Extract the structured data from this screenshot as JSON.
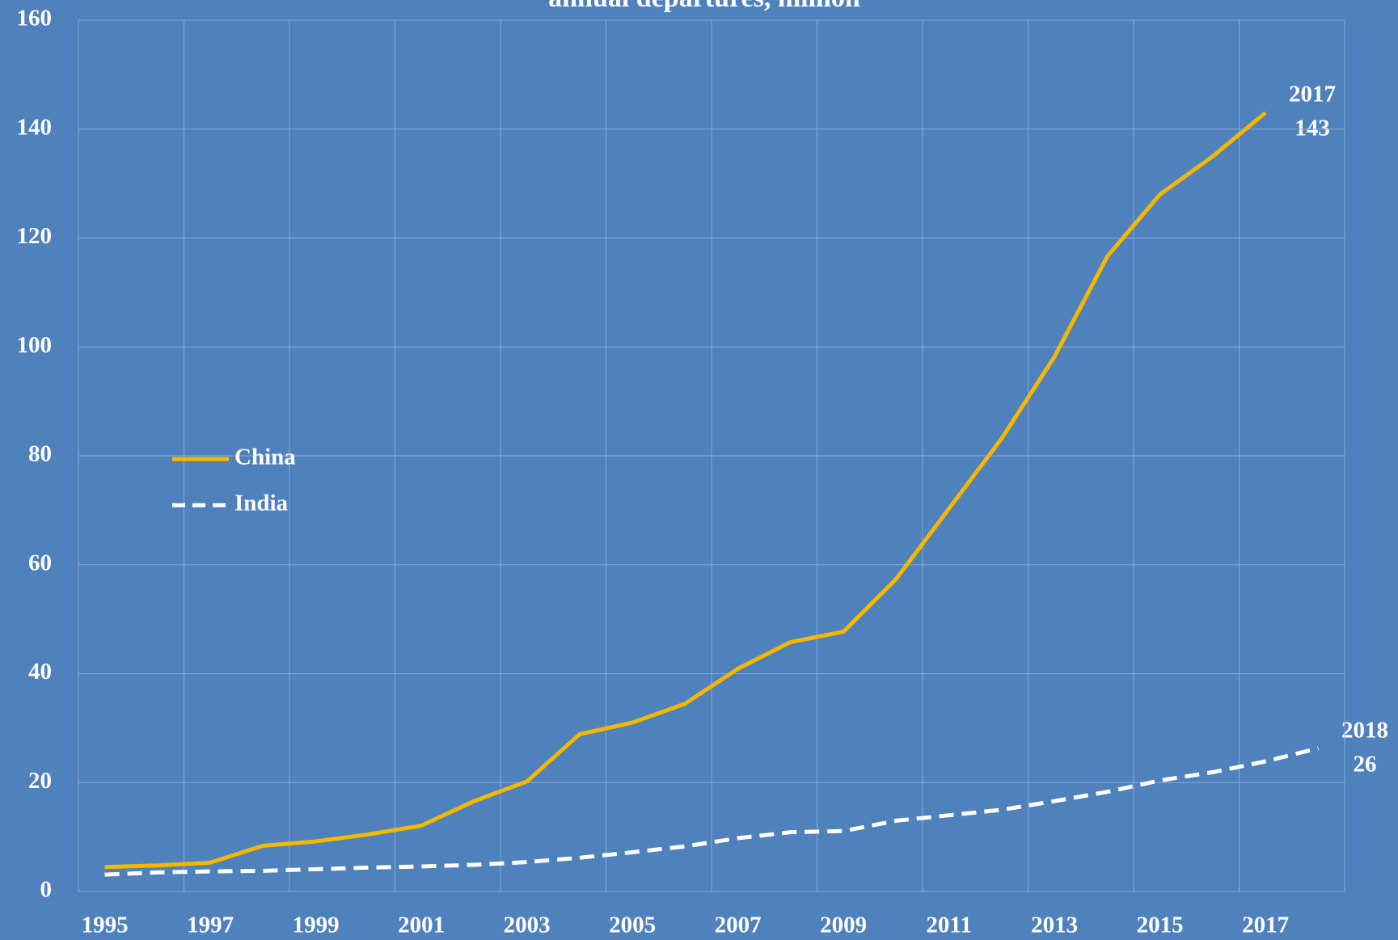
{
  "chart_data": {
    "type": "line",
    "title": "annual departures, million",
    "categories": [
      "1995",
      null,
      "1997",
      null,
      "1999",
      null,
      "2001",
      null,
      "2003",
      null,
      "2005",
      null,
      "2007",
      null,
      "2009",
      null,
      "2011",
      null,
      "2013",
      null,
      "2015",
      null,
      "2017",
      null
    ],
    "series": [
      {
        "name": "China",
        "color": "#f5b800",
        "dash": false,
        "values": [
          4.5,
          4.8,
          5.3,
          8.4,
          9.2,
          10.5,
          12.1,
          16.6,
          20.2,
          28.9,
          31.0,
          34.5,
          40.9,
          45.8,
          47.7,
          57.4,
          70.3,
          83.2,
          98.2,
          116.6,
          128,
          135,
          143,
          null
        ]
      },
      {
        "name": "India",
        "color": "#ffffff",
        "dash": true,
        "values": [
          3.1,
          3.5,
          3.7,
          3.8,
          4.1,
          4.4,
          4.6,
          4.9,
          5.4,
          6.2,
          7.2,
          8.3,
          9.8,
          10.9,
          11.1,
          13.0,
          14.0,
          15.0,
          16.6,
          18.3,
          20.4,
          21.9,
          23.9,
          26.3
        ]
      }
    ],
    "ylim": [
      0,
      160
    ],
    "yticks": [
      0,
      20,
      40,
      60,
      80,
      100,
      120,
      140,
      160
    ],
    "grid": true,
    "annotations": [
      {
        "lines": [
          "2017",
          "143"
        ]
      },
      {
        "lines": [
          "2018",
          "26"
        ]
      }
    ]
  }
}
